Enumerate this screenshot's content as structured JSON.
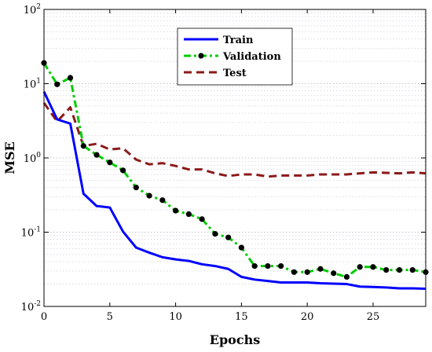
{
  "chart_data": {
    "type": "line",
    "xlabel": "Epochs",
    "ylabel": "MSE",
    "x_ticks": [
      0,
      5,
      10,
      15,
      20,
      25
    ],
    "xlim": [
      0,
      29
    ],
    "yscale": "log",
    "ylim": [
      0.01,
      100
    ],
    "y_ticks": [
      {
        "value": 0.01,
        "base": "10",
        "exp": "-2"
      },
      {
        "value": 0.1,
        "base": "10",
        "exp": "-1"
      },
      {
        "value": 1,
        "base": "10",
        "exp": "0"
      },
      {
        "value": 10,
        "base": "10",
        "exp": "1"
      },
      {
        "value": 100,
        "base": "10",
        "exp": "2"
      }
    ],
    "grid": true,
    "legend_position": "top-center",
    "x": [
      0,
      1,
      2,
      3,
      4,
      5,
      6,
      7,
      8,
      9,
      10,
      11,
      12,
      13,
      14,
      15,
      16,
      17,
      18,
      19,
      20,
      21,
      22,
      23,
      24,
      25,
      26,
      27,
      28,
      29
    ],
    "series": [
      {
        "name": "Train",
        "color": "#0000ff",
        "style": "solid",
        "values": [
          7.8,
          3.3,
          2.9,
          0.33,
          0.225,
          0.215,
          0.102,
          0.062,
          0.053,
          0.046,
          0.043,
          0.041,
          0.037,
          0.035,
          0.032,
          0.025,
          0.023,
          0.022,
          0.021,
          0.021,
          0.021,
          0.0205,
          0.0203,
          0.02,
          0.0185,
          0.0183,
          0.018,
          0.0175,
          0.0175,
          0.0173
        ]
      },
      {
        "name": "Validation",
        "color": "#00cc00",
        "style": "dash-dot",
        "marker_color": "#000000",
        "values": [
          19,
          9.8,
          12,
          1.45,
          1.1,
          0.87,
          0.68,
          0.4,
          0.31,
          0.27,
          0.195,
          0.175,
          0.15,
          0.095,
          0.085,
          0.062,
          0.035,
          0.035,
          0.035,
          0.029,
          0.029,
          0.032,
          0.028,
          0.025,
          0.034,
          0.034,
          0.031,
          0.031,
          0.031,
          0.029
        ]
      },
      {
        "name": "Test",
        "color": "#8b1a1a",
        "style": "dashed",
        "values": [
          5.5,
          3.1,
          4.8,
          1.45,
          1.55,
          1.3,
          1.35,
          0.95,
          0.82,
          0.85,
          0.78,
          0.7,
          0.7,
          0.62,
          0.57,
          0.6,
          0.6,
          0.56,
          0.58,
          0.58,
          0.58,
          0.6,
          0.6,
          0.6,
          0.62,
          0.64,
          0.63,
          0.62,
          0.64,
          0.62
        ]
      }
    ]
  }
}
